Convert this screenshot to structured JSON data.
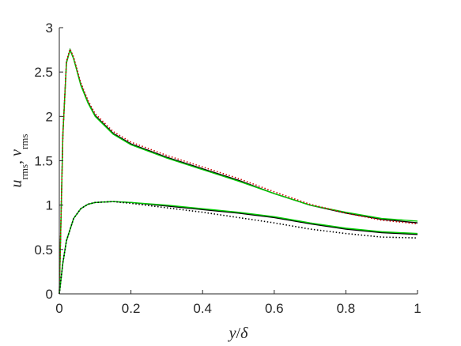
{
  "chart_data": {
    "type": "line",
    "xlabel": [
      {
        "text": "y",
        "italic": true
      },
      {
        "text": "/"
      },
      {
        "text": "δ",
        "italic": true
      }
    ],
    "ylabel": [
      {
        "text": "u",
        "italic": true
      },
      {
        "text": "rms",
        "sub": true
      },
      {
        "text": ", "
      },
      {
        "text": "v",
        "italic": true
      },
      {
        "text": "rms",
        "sub": true
      }
    ],
    "xlim": [
      0,
      1
    ],
    "ylim": [
      0,
      3
    ],
    "xticks": [
      0,
      0.2,
      0.4,
      0.6,
      0.8,
      1
    ],
    "yticks": [
      0,
      0.5,
      1,
      1.5,
      2,
      2.5,
      3
    ],
    "series": [
      {
        "color": "#000000",
        "dash": "solid",
        "x": [
          0,
          0.005,
          0.01,
          0.02,
          0.03,
          0.04,
          0.06,
          0.08,
          0.1,
          0.15,
          0.2,
          0.3,
          0.4,
          0.5,
          0.6,
          0.7,
          0.8,
          0.9,
          1.0
        ],
        "values": [
          0,
          0.9,
          1.8,
          2.61,
          2.75,
          2.65,
          2.36,
          2.16,
          2.01,
          1.81,
          1.69,
          1.54,
          1.41,
          1.28,
          1.13,
          1.0,
          0.91,
          0.84,
          0.8
        ]
      },
      {
        "color": "#00cc00",
        "dash": "solid",
        "x": [
          0,
          0.005,
          0.01,
          0.02,
          0.03,
          0.04,
          0.06,
          0.08,
          0.1,
          0.15,
          0.2,
          0.3,
          0.4,
          0.5,
          0.6,
          0.7,
          0.8,
          0.9,
          1.0
        ],
        "values": [
          0,
          0.9,
          1.8,
          2.6,
          2.75,
          2.65,
          2.35,
          2.15,
          2.0,
          1.8,
          1.68,
          1.53,
          1.4,
          1.27,
          1.13,
          1.0,
          0.92,
          0.85,
          0.82
        ]
      },
      {
        "color": "#cc0000",
        "dash": "dotted",
        "x": [
          0,
          0.005,
          0.01,
          0.02,
          0.03,
          0.04,
          0.06,
          0.08,
          0.1,
          0.15,
          0.2,
          0.3,
          0.4,
          0.5,
          0.6,
          0.7,
          0.8,
          0.9,
          1.0
        ],
        "values": [
          0,
          0.9,
          1.8,
          2.62,
          2.76,
          2.67,
          2.38,
          2.18,
          2.03,
          1.83,
          1.71,
          1.56,
          1.43,
          1.3,
          1.15,
          1.01,
          0.91,
          0.83,
          0.79
        ]
      },
      {
        "color": "#000000",
        "dash": "solid",
        "x": [
          0,
          0.01,
          0.02,
          0.04,
          0.06,
          0.08,
          0.1,
          0.15,
          0.2,
          0.3,
          0.4,
          0.5,
          0.6,
          0.7,
          0.8,
          0.9,
          1.0
        ],
        "values": [
          0,
          0.35,
          0.6,
          0.85,
          0.96,
          1.01,
          1.03,
          1.04,
          1.03,
          0.99,
          0.95,
          0.91,
          0.86,
          0.79,
          0.73,
          0.69,
          0.67
        ]
      },
      {
        "color": "#00cc00",
        "dash": "solid",
        "x": [
          0,
          0.01,
          0.02,
          0.04,
          0.06,
          0.08,
          0.1,
          0.15,
          0.2,
          0.3,
          0.4,
          0.5,
          0.6,
          0.7,
          0.8,
          0.9,
          1.0
        ],
        "values": [
          0,
          0.35,
          0.6,
          0.85,
          0.96,
          1.01,
          1.03,
          1.04,
          1.03,
          1.0,
          0.96,
          0.92,
          0.87,
          0.8,
          0.74,
          0.7,
          0.68
        ]
      },
      {
        "color": "#000000",
        "dash": "dotted",
        "x": [
          0,
          0.01,
          0.02,
          0.04,
          0.06,
          0.08,
          0.1,
          0.15,
          0.2,
          0.3,
          0.4,
          0.5,
          0.6,
          0.7,
          0.8,
          0.9,
          1.0
        ],
        "values": [
          0,
          0.35,
          0.6,
          0.85,
          0.96,
          1.01,
          1.03,
          1.04,
          1.02,
          0.97,
          0.92,
          0.86,
          0.8,
          0.73,
          0.68,
          0.64,
          0.63
        ]
      }
    ]
  }
}
